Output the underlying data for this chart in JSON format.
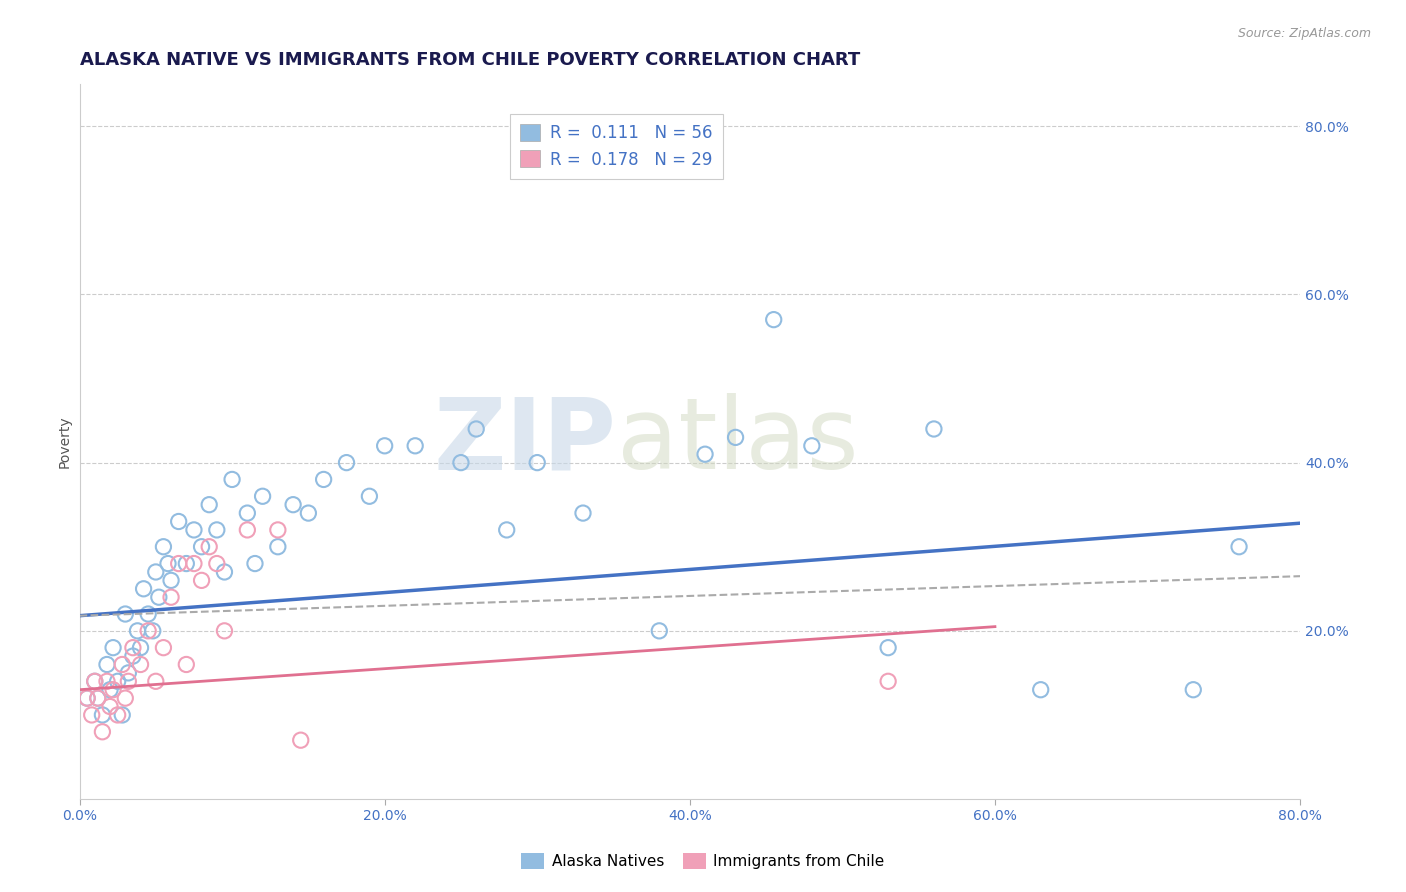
{
  "title": "ALASKA NATIVE VS IMMIGRANTS FROM CHILE POVERTY CORRELATION CHART",
  "source_text": "Source: ZipAtlas.com",
  "ylabel": "Poverty",
  "xlim": [
    0.0,
    0.8
  ],
  "ylim": [
    0.0,
    0.85
  ],
  "xtick_labels": [
    "0.0%",
    "20.0%",
    "40.0%",
    "60.0%",
    "80.0%"
  ],
  "xtick_values": [
    0.0,
    0.2,
    0.4,
    0.6,
    0.8
  ],
  "ytick_labels": [
    "20.0%",
    "40.0%",
    "60.0%",
    "80.0%"
  ],
  "ytick_values": [
    0.2,
    0.4,
    0.6,
    0.8
  ],
  "blue_scatter_x": [
    0.005,
    0.01,
    0.012,
    0.015,
    0.018,
    0.02,
    0.022,
    0.025,
    0.028,
    0.03,
    0.032,
    0.035,
    0.038,
    0.04,
    0.042,
    0.045,
    0.048,
    0.05,
    0.052,
    0.055,
    0.058,
    0.06,
    0.065,
    0.07,
    0.075,
    0.08,
    0.085,
    0.09,
    0.095,
    0.1,
    0.11,
    0.115,
    0.12,
    0.13,
    0.14,
    0.15,
    0.16,
    0.175,
    0.19,
    0.2,
    0.22,
    0.25,
    0.26,
    0.28,
    0.3,
    0.33,
    0.38,
    0.41,
    0.43,
    0.455,
    0.48,
    0.53,
    0.56,
    0.63,
    0.73,
    0.76
  ],
  "blue_scatter_y": [
    0.12,
    0.14,
    0.12,
    0.1,
    0.16,
    0.13,
    0.18,
    0.14,
    0.1,
    0.22,
    0.15,
    0.17,
    0.2,
    0.18,
    0.25,
    0.22,
    0.2,
    0.27,
    0.24,
    0.3,
    0.28,
    0.26,
    0.33,
    0.28,
    0.32,
    0.3,
    0.35,
    0.32,
    0.27,
    0.38,
    0.34,
    0.28,
    0.36,
    0.3,
    0.35,
    0.34,
    0.38,
    0.4,
    0.36,
    0.42,
    0.42,
    0.4,
    0.44,
    0.32,
    0.4,
    0.34,
    0.2,
    0.41,
    0.43,
    0.57,
    0.42,
    0.18,
    0.44,
    0.13,
    0.13,
    0.3
  ],
  "pink_scatter_x": [
    0.005,
    0.008,
    0.01,
    0.012,
    0.015,
    0.018,
    0.02,
    0.022,
    0.025,
    0.028,
    0.03,
    0.032,
    0.035,
    0.04,
    0.045,
    0.05,
    0.055,
    0.06,
    0.065,
    0.07,
    0.075,
    0.08,
    0.085,
    0.09,
    0.095,
    0.11,
    0.13,
    0.145,
    0.53
  ],
  "pink_scatter_y": [
    0.12,
    0.1,
    0.14,
    0.12,
    0.08,
    0.14,
    0.11,
    0.13,
    0.1,
    0.16,
    0.12,
    0.14,
    0.18,
    0.16,
    0.2,
    0.14,
    0.18,
    0.24,
    0.28,
    0.16,
    0.28,
    0.26,
    0.3,
    0.28,
    0.2,
    0.32,
    0.32,
    0.07,
    0.14
  ],
  "blue_line_x": [
    0.0,
    0.8
  ],
  "blue_line_y": [
    0.218,
    0.328
  ],
  "pink_line_x": [
    0.0,
    0.6
  ],
  "pink_line_y": [
    0.13,
    0.205
  ],
  "gray_line_x": [
    0.0,
    0.8
  ],
  "gray_line_y": [
    0.218,
    0.265
  ],
  "blue_color": "#92bce0",
  "pink_color": "#f0a0b8",
  "blue_line_color": "#4472c4",
  "pink_line_color": "#e07090",
  "gray_line_color": "#aaaaaa",
  "r_blue": "0.111",
  "n_blue": "56",
  "r_pink": "0.178",
  "n_pink": "29",
  "watermark_zip": "ZIP",
  "watermark_atlas": "atlas",
  "background_color": "#ffffff",
  "grid_color": "#cccccc",
  "title_fontsize": 13,
  "label_fontsize": 10,
  "tick_fontsize": 10,
  "scatter_size": 120
}
